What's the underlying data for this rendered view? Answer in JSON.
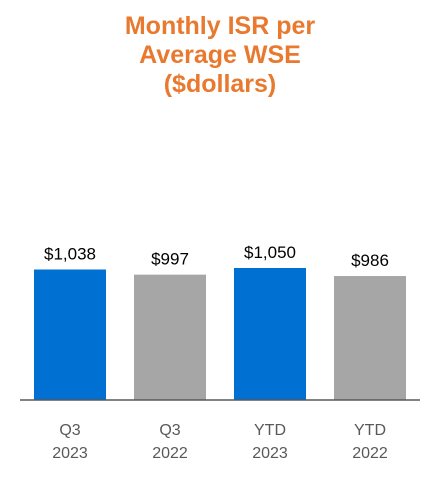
{
  "chart_data": {
    "type": "bar",
    "title_lines": [
      "Monthly ISR per",
      "Average WSE",
      "($dollars)"
    ],
    "categories": [
      {
        "line1": "Q3",
        "line2": "2023"
      },
      {
        "line1": "Q3",
        "line2": "2022"
      },
      {
        "line1": "YTD",
        "line2": "2023"
      },
      {
        "line1": "YTD",
        "line2": "2022"
      }
    ],
    "values": [
      1038,
      997,
      1050,
      986
    ],
    "value_labels": [
      "$1,038",
      "$997",
      "$1,050",
      "$986"
    ],
    "bar_colors": [
      "#0070d2",
      "#a6a6a6",
      "#0070d2",
      "#a6a6a6"
    ],
    "title_color": "#e8792f",
    "axis_color": "#595959",
    "ylim": [
      0,
      1050
    ],
    "grid": false,
    "legend": "none"
  }
}
